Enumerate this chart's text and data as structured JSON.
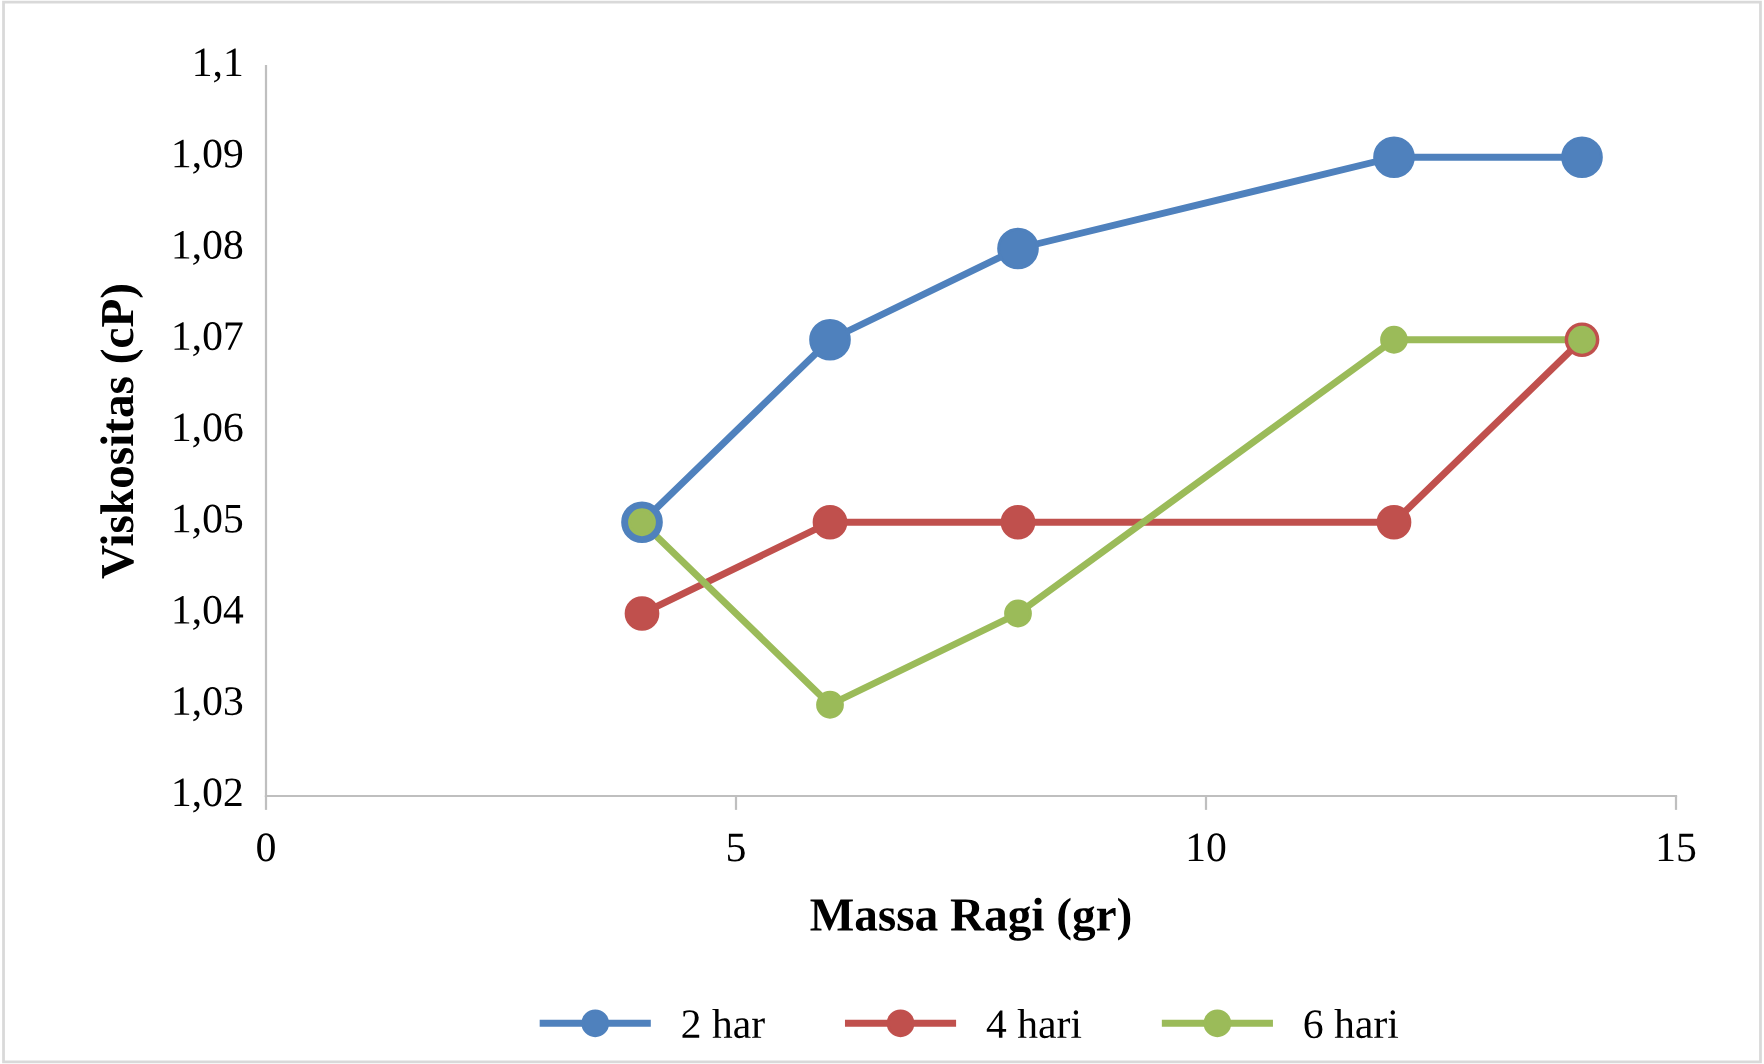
{
  "chart_data": {
    "type": "line",
    "xlabel": "Massa Ragi (gr)",
    "ylabel": "Viskositas (cP)",
    "x": [
      4,
      6,
      8,
      12,
      14
    ],
    "series": [
      {
        "name": "2 har",
        "color": "#4f81bd",
        "values": [
          1.05,
          1.07,
          1.08,
          1.09,
          1.09
        ]
      },
      {
        "name": "4 hari",
        "color": "#c0504d",
        "values": [
          1.04,
          1.05,
          1.05,
          1.05,
          1.07
        ]
      },
      {
        "name": "6 hari",
        "color": "#9bbb59",
        "values": [
          1.05,
          1.03,
          1.04,
          1.07,
          1.07
        ]
      }
    ],
    "xlim": [
      0,
      15
    ],
    "xticks": [
      0,
      5,
      10,
      15
    ],
    "ylim": [
      1.02,
      1.1
    ],
    "yticks": [
      {
        "value": 1.02,
        "label": "1,02"
      },
      {
        "value": 1.03,
        "label": "1,03"
      },
      {
        "value": 1.04,
        "label": "1,04"
      },
      {
        "value": 1.05,
        "label": "1,05"
      },
      {
        "value": 1.06,
        "label": "1,06"
      },
      {
        "value": 1.07,
        "label": "1,07"
      },
      {
        "value": 1.08,
        "label": "1,08"
      },
      {
        "value": 1.09,
        "label": "1,09"
      },
      {
        "value": 1.1,
        "label": "1,1"
      }
    ],
    "grid": false,
    "legend": "bottom",
    "marker": "circle",
    "line_style": "solid"
  }
}
